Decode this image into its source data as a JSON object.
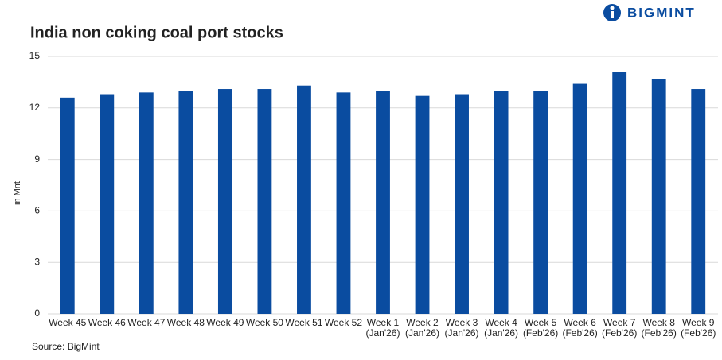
{
  "chart_data": {
    "type": "bar",
    "title": "India non coking coal port stocks",
    "logo": "BIGMINT",
    "source": "Source: BigMint",
    "y_label": "in Mnt",
    "categories": [
      "Week 45",
      "Week 46",
      "Week 47",
      "Week 48",
      "Week 49",
      "Week 50",
      "Week 51",
      "Week 52",
      "Week 1 (Jan'26)",
      "Week 2 (Jan'26)",
      "Week 3 (Jan'26)",
      "Week 4 (Jan'26)",
      "Week 5 (Feb'26)",
      "Week 6 (Feb'26)",
      "Week 7 (Feb'26)",
      "Week 8 (Feb'26)",
      "Week 9 (Feb'26)"
    ],
    "values": [
      12.6,
      12.8,
      12.9,
      13.0,
      13.1,
      13.1,
      13.3,
      12.9,
      13.0,
      12.7,
      12.8,
      13.0,
      13.0,
      13.4,
      14.1,
      13.7,
      13.1
    ],
    "color": "#0a4ca0",
    "ylim": [
      0,
      15
    ],
    "yticks": [
      0,
      3,
      6,
      9,
      12,
      15
    ],
    "grid": true
  }
}
